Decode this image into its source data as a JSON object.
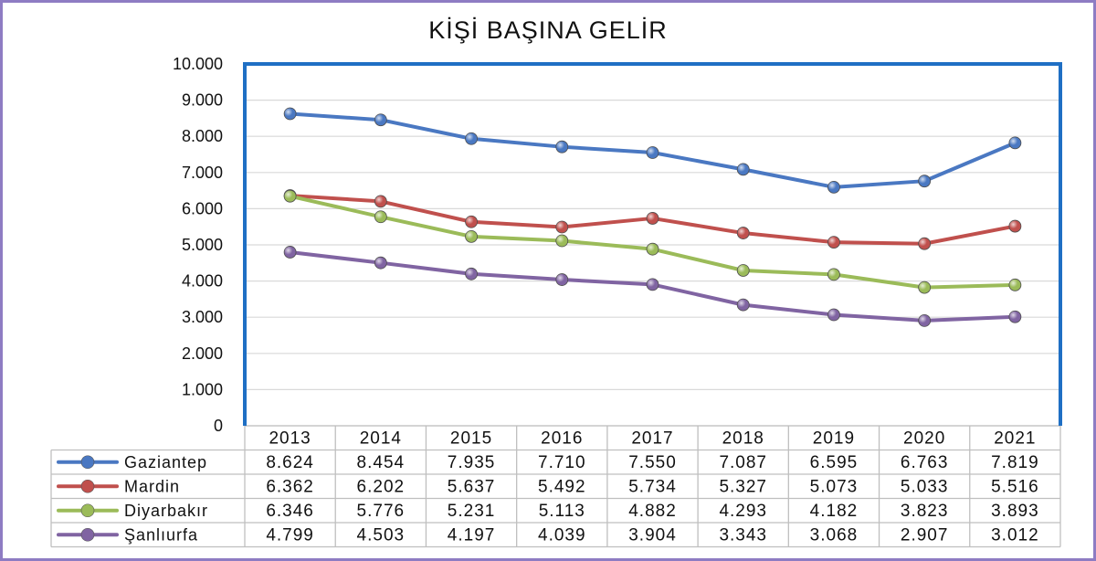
{
  "chart_data": {
    "type": "line",
    "title": "KİŞİ BAŞINA GELİR",
    "xlabel": "",
    "ylabel": "",
    "categories": [
      "2013",
      "2014",
      "2015",
      "2016",
      "2017",
      "2018",
      "2019",
      "2020",
      "2021"
    ],
    "ylim": [
      0,
      10000
    ],
    "yticks": [
      0,
      1000,
      2000,
      3000,
      4000,
      5000,
      6000,
      7000,
      8000,
      9000,
      10000
    ],
    "ytick_labels": [
      "0",
      "1.000",
      "2.000",
      "3.000",
      "4.000",
      "5.000",
      "6.000",
      "7.000",
      "8.000",
      "9.000",
      "10.000"
    ],
    "grid": true,
    "legend": "data-table-left",
    "series": [
      {
        "name": "Gaziantep",
        "color": "#4a78c2",
        "values": [
          8624,
          8454,
          7935,
          7710,
          7550,
          7087,
          6595,
          6763,
          7819
        ],
        "labels": [
          "8.624",
          "8.454",
          "7.935",
          "7.710",
          "7.550",
          "7.087",
          "6.595",
          "6.763",
          "7.819"
        ]
      },
      {
        "name": "Mardin",
        "color": "#c0504d",
        "values": [
          6362,
          6202,
          5637,
          5492,
          5734,
          5327,
          5073,
          5033,
          5516
        ],
        "labels": [
          "6.362",
          "6.202",
          "5.637",
          "5.492",
          "5.734",
          "5.327",
          "5.073",
          "5.033",
          "5.516"
        ]
      },
      {
        "name": "Diyarbakır",
        "color": "#9bbb59",
        "values": [
          6346,
          5776,
          5231,
          5113,
          4882,
          4293,
          4182,
          3823,
          3893
        ],
        "labels": [
          "6.346",
          "5.776",
          "5.231",
          "5.113",
          "4.882",
          "4.293",
          "4.182",
          "3.823",
          "3.893"
        ]
      },
      {
        "name": "Şanlıurfa",
        "color": "#8064a2",
        "values": [
          4799,
          4503,
          4197,
          4039,
          3904,
          3343,
          3068,
          2907,
          3012
        ],
        "labels": [
          "4.799",
          "4.503",
          "4.197",
          "4.039",
          "3.904",
          "3.343",
          "3.068",
          "2.907",
          "3.012"
        ]
      }
    ],
    "colors": {
      "plot_border": "#1f6fc4",
      "grid": "#d9d9d9",
      "table_border": "#bfbfbf"
    }
  }
}
